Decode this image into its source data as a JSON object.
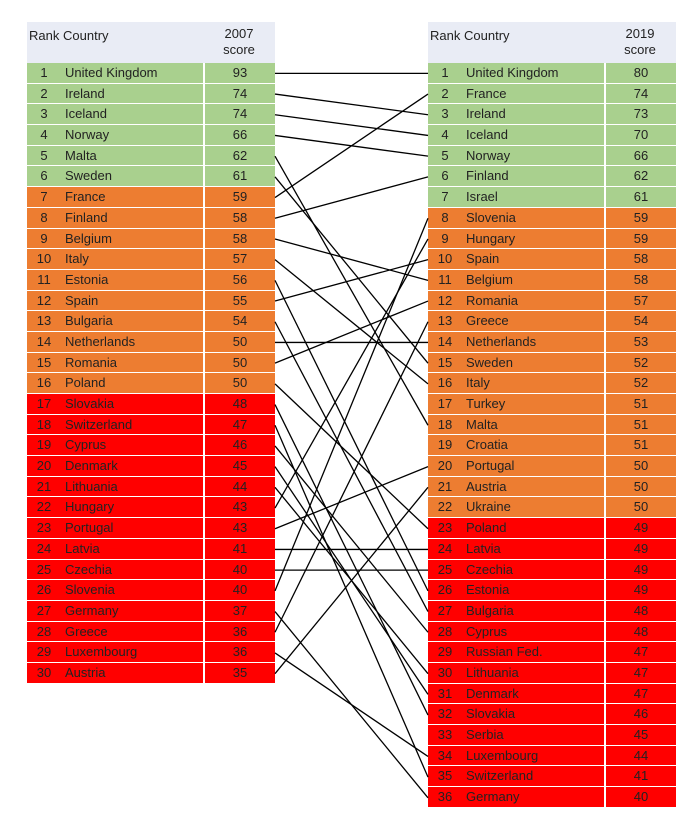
{
  "chart_data": {
    "type": "table",
    "header": {
      "rank": "Rank",
      "country": "Country"
    },
    "left": {
      "score_label": [
        "2007",
        "score"
      ],
      "rows": [
        {
          "rank": 1,
          "country": "United Kingdom",
          "score": 93,
          "band": "green"
        },
        {
          "rank": 2,
          "country": "Ireland",
          "score": 74,
          "band": "green"
        },
        {
          "rank": 3,
          "country": "Iceland",
          "score": 74,
          "band": "green"
        },
        {
          "rank": 4,
          "country": "Norway",
          "score": 66,
          "band": "green"
        },
        {
          "rank": 5,
          "country": "Malta",
          "score": 62,
          "band": "green"
        },
        {
          "rank": 6,
          "country": "Sweden",
          "score": 61,
          "band": "green"
        },
        {
          "rank": 7,
          "country": "France",
          "score": 59,
          "band": "orange"
        },
        {
          "rank": 8,
          "country": "Finland",
          "score": 58,
          "band": "orange"
        },
        {
          "rank": 9,
          "country": "Belgium",
          "score": 58,
          "band": "orange"
        },
        {
          "rank": 10,
          "country": "Italy",
          "score": 57,
          "band": "orange"
        },
        {
          "rank": 11,
          "country": "Estonia",
          "score": 56,
          "band": "orange"
        },
        {
          "rank": 12,
          "country": "Spain",
          "score": 55,
          "band": "orange"
        },
        {
          "rank": 13,
          "country": "Bulgaria",
          "score": 54,
          "band": "orange"
        },
        {
          "rank": 14,
          "country": "Netherlands",
          "score": 50,
          "band": "orange"
        },
        {
          "rank": 15,
          "country": "Romania",
          "score": 50,
          "band": "orange"
        },
        {
          "rank": 16,
          "country": "Poland",
          "score": 50,
          "band": "orange"
        },
        {
          "rank": 17,
          "country": "Slovakia",
          "score": 48,
          "band": "red"
        },
        {
          "rank": 18,
          "country": "Switzerland",
          "score": 47,
          "band": "red"
        },
        {
          "rank": 19,
          "country": "Cyprus",
          "score": 46,
          "band": "red"
        },
        {
          "rank": 20,
          "country": "Denmark",
          "score": 45,
          "band": "red"
        },
        {
          "rank": 21,
          "country": "Lithuania",
          "score": 44,
          "band": "red"
        },
        {
          "rank": 22,
          "country": "Hungary",
          "score": 43,
          "band": "red"
        },
        {
          "rank": 23,
          "country": "Portugal",
          "score": 43,
          "band": "red"
        },
        {
          "rank": 24,
          "country": "Latvia",
          "score": 41,
          "band": "red"
        },
        {
          "rank": 25,
          "country": "Czechia",
          "score": 40,
          "band": "red"
        },
        {
          "rank": 26,
          "country": "Slovenia",
          "score": 40,
          "band": "red"
        },
        {
          "rank": 27,
          "country": "Germany",
          "score": 37,
          "band": "red"
        },
        {
          "rank": 28,
          "country": "Greece",
          "score": 36,
          "band": "red"
        },
        {
          "rank": 29,
          "country": "Luxembourg",
          "score": 36,
          "band": "red"
        },
        {
          "rank": 30,
          "country": "Austria",
          "score": 35,
          "band": "red"
        }
      ]
    },
    "right": {
      "score_label": [
        "2019",
        "score"
      ],
      "rows": [
        {
          "rank": 1,
          "country": "United Kingdom",
          "score": 80,
          "band": "green"
        },
        {
          "rank": 2,
          "country": "France",
          "score": 74,
          "band": "green"
        },
        {
          "rank": 3,
          "country": "Ireland",
          "score": 73,
          "band": "green"
        },
        {
          "rank": 4,
          "country": "Iceland",
          "score": 70,
          "band": "green"
        },
        {
          "rank": 5,
          "country": "Norway",
          "score": 66,
          "band": "green"
        },
        {
          "rank": 6,
          "country": "Finland",
          "score": 62,
          "band": "green"
        },
        {
          "rank": 7,
          "country": "Israel",
          "score": 61,
          "band": "green"
        },
        {
          "rank": 8,
          "country": "Slovenia",
          "score": 59,
          "band": "orange"
        },
        {
          "rank": 9,
          "country": "Hungary",
          "score": 59,
          "band": "orange"
        },
        {
          "rank": 10,
          "country": "Spain",
          "score": 58,
          "band": "orange"
        },
        {
          "rank": 11,
          "country": "Belgium",
          "score": 58,
          "band": "orange"
        },
        {
          "rank": 12,
          "country": "Romania",
          "score": 57,
          "band": "orange"
        },
        {
          "rank": 13,
          "country": "Greece",
          "score": 54,
          "band": "orange"
        },
        {
          "rank": 14,
          "country": "Netherlands",
          "score": 53,
          "band": "orange"
        },
        {
          "rank": 15,
          "country": "Sweden",
          "score": 52,
          "band": "orange"
        },
        {
          "rank": 16,
          "country": "Italy",
          "score": 52,
          "band": "orange"
        },
        {
          "rank": 17,
          "country": "Turkey",
          "score": 51,
          "band": "orange"
        },
        {
          "rank": 18,
          "country": "Malta",
          "score": 51,
          "band": "orange"
        },
        {
          "rank": 19,
          "country": "Croatia",
          "score": 51,
          "band": "orange"
        },
        {
          "rank": 20,
          "country": "Portugal",
          "score": 50,
          "band": "orange"
        },
        {
          "rank": 21,
          "country": "Austria",
          "score": 50,
          "band": "orange"
        },
        {
          "rank": 22,
          "country": "Ukraine",
          "score": 50,
          "band": "orange"
        },
        {
          "rank": 23,
          "country": "Poland",
          "score": 49,
          "band": "red"
        },
        {
          "rank": 24,
          "country": "Latvia",
          "score": 49,
          "band": "red"
        },
        {
          "rank": 25,
          "country": "Czechia",
          "score": 49,
          "band": "red"
        },
        {
          "rank": 26,
          "country": "Estonia",
          "score": 49,
          "band": "red"
        },
        {
          "rank": 27,
          "country": "Bulgaria",
          "score": 48,
          "band": "red"
        },
        {
          "rank": 28,
          "country": "Cyprus",
          "score": 48,
          "band": "red"
        },
        {
          "rank": 29,
          "country": "Russian Fed.",
          "score": 47,
          "band": "red"
        },
        {
          "rank": 30,
          "country": "Lithuania",
          "score": 47,
          "band": "red"
        },
        {
          "rank": 31,
          "country": "Denmark",
          "score": 47,
          "band": "red"
        },
        {
          "rank": 32,
          "country": "Slovakia",
          "score": 46,
          "band": "red"
        },
        {
          "rank": 33,
          "country": "Serbia",
          "score": 45,
          "band": "red"
        },
        {
          "rank": 34,
          "country": "Luxembourg",
          "score": 44,
          "band": "red"
        },
        {
          "rank": 35,
          "country": "Switzerland",
          "score": 41,
          "band": "red"
        },
        {
          "rank": 36,
          "country": "Germany",
          "score": 40,
          "band": "red"
        }
      ]
    },
    "colors": {
      "green": "#a9d08e",
      "orange": "#ed7d31",
      "red": "#ff0000",
      "header": "#e9ecf5",
      "line": "#000000"
    }
  }
}
